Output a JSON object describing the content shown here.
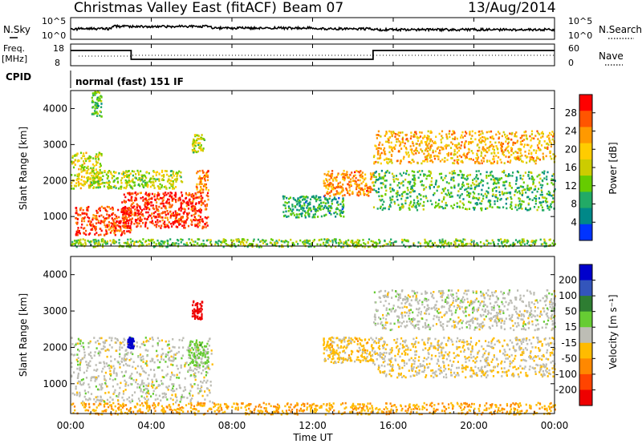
{
  "header": {
    "site": "Christmas Valley East (fitACF)",
    "beam": "Beam 07",
    "date": "13/Aug/2014"
  },
  "status_panels": {
    "nsky_label": "N.Sky",
    "nsky_ticks": [
      "10^5",
      "10^0"
    ],
    "nsearch_label": "N.Search",
    "nsearch_ticks": [
      "10^5",
      "10^0"
    ],
    "freq_label_line1": "Freq.",
    "freq_label_line2": "[MHz]",
    "freq_ticks": [
      "18",
      "8"
    ],
    "nave_label": "Nave",
    "nave_ticks": [
      "60",
      "0"
    ],
    "cpid_label": "CPID",
    "cpid_text": "normal (fast) 151 IF"
  },
  "power_colorbar": {
    "label": "Power [dB]",
    "ticks": [
      "28",
      "24",
      "20",
      "16",
      "12",
      "8",
      "4"
    ],
    "colors": [
      "#ff0000",
      "#ff5500",
      "#ff9900",
      "#ffcc00",
      "#cccc00",
      "#66cc00",
      "#22aa66",
      "#008888",
      "#0033ff"
    ]
  },
  "velocity_colorbar": {
    "label": "Velocity [m s⁻¹]",
    "ticks": [
      "200",
      "100",
      "50",
      "15",
      "-15",
      "-50",
      "-100",
      "-200"
    ],
    "colors": [
      "#0000cc",
      "#3355bb",
      "#2e7d32",
      "#66cc33",
      "#bdbdb5",
      "#ffbb00",
      "#ff8800",
      "#ff4400",
      "#ee0000"
    ]
  },
  "x_axis": {
    "label": "Time UT",
    "ticks": [
      "00:00",
      "04:00",
      "08:00",
      "12:00",
      "16:00",
      "20:00",
      "00:00"
    ]
  },
  "chart_data": [
    {
      "type": "heatmap",
      "title": "Power",
      "xlabel": "",
      "ylabel": "Slant Range [km]",
      "x_range_hours": [
        0,
        24
      ],
      "ylim": [
        180,
        4500
      ],
      "y_ticks": [
        1000,
        2000,
        3000,
        4000
      ],
      "colorbar_range_db": [
        0,
        30
      ],
      "echo_regions": [
        {
          "t_start": 0.0,
          "t_end": 1.5,
          "range_start": 1800,
          "range_end": 2800,
          "power_db": 16
        },
        {
          "t_start": 0.2,
          "t_end": 3.0,
          "range_start": 500,
          "range_end": 1300,
          "power_db": 26
        },
        {
          "t_start": 2.5,
          "t_end": 6.8,
          "range_start": 700,
          "range_end": 1700,
          "power_db": 27
        },
        {
          "t_start": 1.0,
          "t_end": 5.5,
          "range_start": 1800,
          "range_end": 2300,
          "power_db": 14
        },
        {
          "t_start": 6.2,
          "t_end": 6.8,
          "range_start": 1700,
          "range_end": 2300,
          "power_db": 22
        },
        {
          "t_start": 6.0,
          "t_end": 6.6,
          "range_start": 2800,
          "range_end": 3300,
          "power_db": 14
        },
        {
          "t_start": 1.0,
          "t_end": 1.5,
          "range_start": 3800,
          "range_end": 4500,
          "power_db": 10
        },
        {
          "t_start": 10.5,
          "t_end": 13.5,
          "range_start": 1000,
          "range_end": 1600,
          "power_db": 8
        },
        {
          "t_start": 12.5,
          "t_end": 15.0,
          "range_start": 1600,
          "range_end": 2300,
          "power_db": 22
        },
        {
          "t_start": 15.0,
          "t_end": 24.0,
          "range_start": 2500,
          "range_end": 3400,
          "power_db": 20
        },
        {
          "t_start": 15.0,
          "t_end": 24.0,
          "range_start": 1200,
          "range_end": 2300,
          "power_db": 10
        },
        {
          "t_start": 0.0,
          "t_end": 24.0,
          "range_start": 180,
          "range_end": 400,
          "power_db": 12
        }
      ]
    },
    {
      "type": "heatmap",
      "title": "Velocity",
      "xlabel": "Time UT",
      "ylabel": "Slant Range [km]",
      "x_range_hours": [
        0,
        24
      ],
      "ylim": [
        180,
        4500
      ],
      "y_ticks": [
        1000,
        2000,
        3000,
        4000
      ],
      "colorbar_range_ms": [
        -200,
        200
      ],
      "echo_regions": [
        {
          "t_start": 0.0,
          "t_end": 7.0,
          "range_start": 500,
          "range_end": 2300,
          "velocity": 0
        },
        {
          "t_start": 2.8,
          "t_end": 3.1,
          "range_start": 2000,
          "range_end": 2300,
          "velocity": 200
        },
        {
          "t_start": 6.0,
          "t_end": 6.5,
          "range_start": 2800,
          "range_end": 3300,
          "velocity": -200
        },
        {
          "t_start": 5.8,
          "t_end": 6.8,
          "range_start": 1500,
          "range_end": 2200,
          "velocity": 40
        },
        {
          "t_start": 12.5,
          "t_end": 15.0,
          "range_start": 1600,
          "range_end": 2300,
          "velocity": -40
        },
        {
          "t_start": 15.0,
          "t_end": 24.0,
          "range_start": 2500,
          "range_end": 3600,
          "velocity": 0
        },
        {
          "t_start": 15.0,
          "t_end": 24.0,
          "range_start": 1200,
          "range_end": 2300,
          "velocity": -20
        },
        {
          "t_start": 0.0,
          "t_end": 24.0,
          "range_start": 180,
          "range_end": 500,
          "velocity": -60
        }
      ]
    }
  ]
}
